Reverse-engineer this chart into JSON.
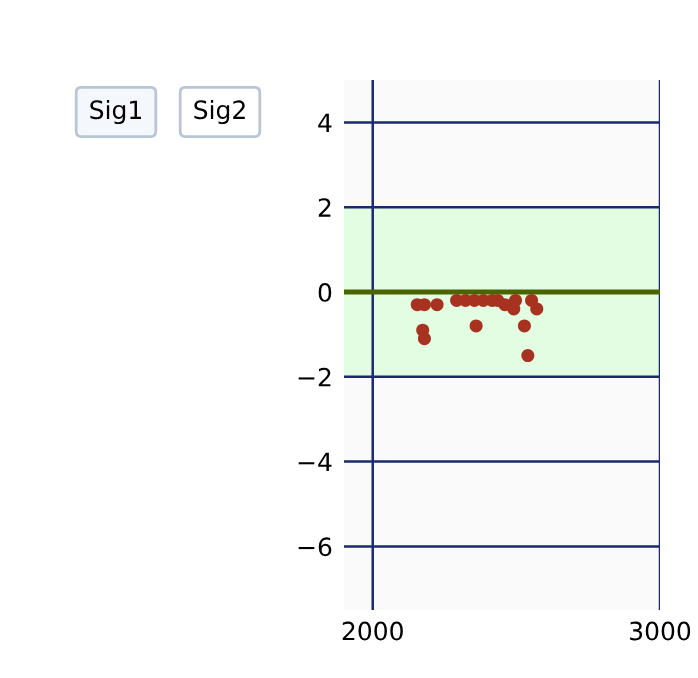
{
  "chart_data": {
    "type": "scatter",
    "annotations": [
      "Sig1",
      "Sig2"
    ],
    "x": [
      2155,
      2180,
      2224,
      2174,
      2180,
      2292,
      2323,
      2354,
      2360,
      2385,
      2416,
      2435,
      2460,
      2491,
      2553,
      2571,
      2528,
      2540,
      2497
    ],
    "series": [
      {
        "color": "#a83220",
        "values": [
          -0.3,
          -0.3,
          -0.3,
          -0.9,
          -1.1,
          -0.2,
          -0.2,
          -0.2,
          -0.8,
          -0.2,
          -0.2,
          -0.2,
          -0.3,
          -0.4,
          -0.2,
          -0.4,
          -0.8,
          -1.5,
          -0.2
        ]
      }
    ],
    "xlim": [
      1900,
      3000
    ],
    "xticks": [
      2000,
      3000
    ],
    "ylim": [
      -7.5,
      5
    ],
    "yticks": [
      {
        "value": -6,
        "label": "−6"
      },
      {
        "value": -4,
        "label": "−4"
      },
      {
        "value": -2,
        "label": "−2"
      },
      0,
      2,
      4
    ],
    "bands": [
      {
        "axis": "y",
        "from": -2,
        "to": 2,
        "color": "#e2fde2"
      }
    ],
    "ref_lines": [
      {
        "axis": "y",
        "value": 0,
        "color": "#4a6400"
      }
    ],
    "grid": true,
    "marker": "circle"
  }
}
